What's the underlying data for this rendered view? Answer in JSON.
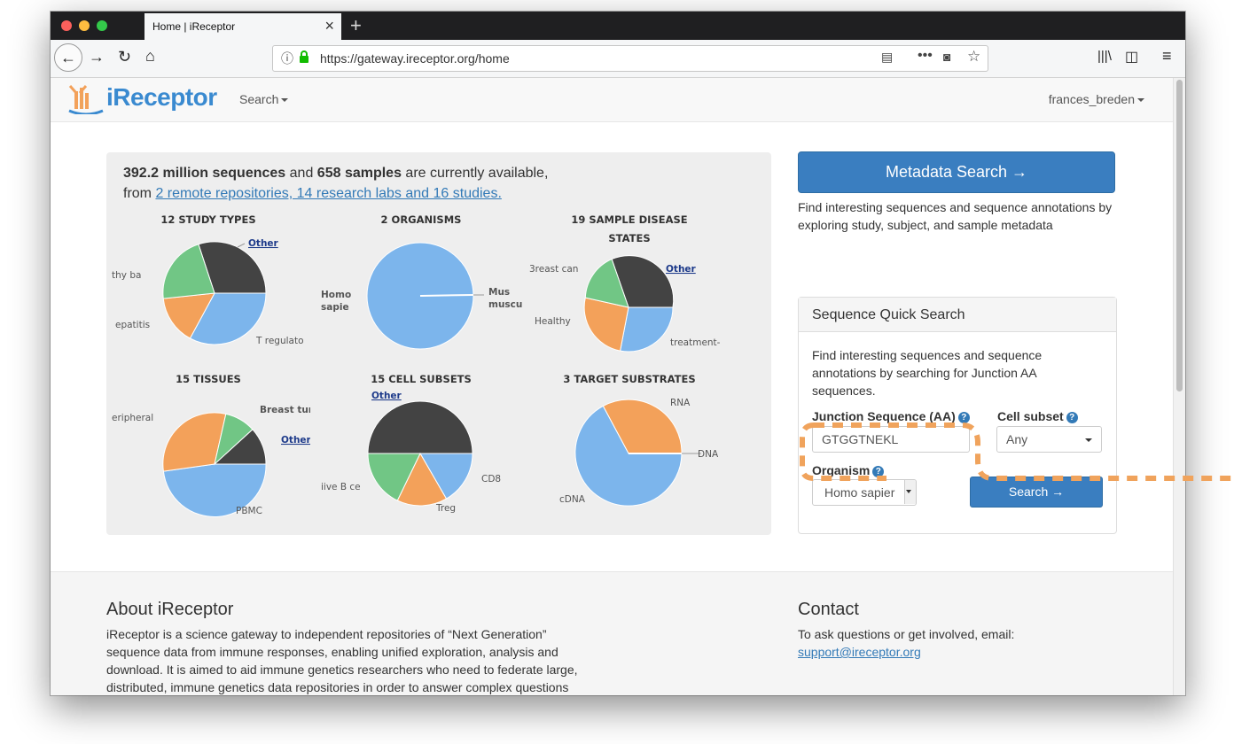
{
  "browser": {
    "tab_title": "Home | iReceptor",
    "url": "https://gateway.ireceptor.org/home"
  },
  "site": {
    "logo_text": "iReceptor",
    "nav_search": "Search",
    "nav_user": "frances_breden"
  },
  "summary": {
    "sequences": "392.2 million sequences",
    "and": " and ",
    "samples": "658 samples",
    "available": " are currently available,",
    "from": "from ",
    "link": "2 remote repositories, 14 research labs and 16 studies."
  },
  "charts": {
    "study_types": {
      "title": "12 STUDY TYPES",
      "other": "Other",
      "labels": [
        "thy ba",
        "epatitis",
        "T regulato"
      ]
    },
    "organisms": {
      "title": "2 ORGANISMS",
      "labels": [
        "Homo",
        "sapie",
        "Mus",
        "muscu"
      ]
    },
    "disease": {
      "title_line1": "19 SAMPLE DISEASE",
      "title_line2": "STATES",
      "other": "Other",
      "labels": [
        "3reast can",
        "Healthy",
        "treatment-"
      ]
    },
    "tissues": {
      "title": "15 TISSUES",
      "other": "Other",
      "labels": [
        "eripheral",
        "Breast tum",
        "PBMC"
      ]
    },
    "cell_subsets": {
      "title": "15 CELL SUBSETS",
      "other": "Other",
      "labels": [
        "iive B ce",
        "Treg",
        "CD8"
      ]
    },
    "substrates": {
      "title": "3 TARGET SUBSTRATES",
      "labels": [
        "RNA",
        "DNA",
        "cDNA"
      ]
    }
  },
  "chart_data": [
    {
      "type": "pie",
      "title": "12 STUDY TYPES",
      "categories": [
        "Other",
        "thy ba",
        "epatitis",
        "T regulato"
      ],
      "values": [
        35,
        12,
        15,
        38
      ]
    },
    {
      "type": "pie",
      "title": "2 ORGANISMS",
      "categories": [
        "Homo sapie",
        "Mus muscu"
      ],
      "values": [
        99.7,
        0.3
      ]
    },
    {
      "type": "pie",
      "title": "19 SAMPLE DISEASE STATES",
      "categories": [
        "Other",
        "3reast can",
        "Healthy",
        "treatment-"
      ],
      "values": [
        32,
        10,
        28,
        30
      ]
    },
    {
      "type": "pie",
      "title": "15 TISSUES",
      "categories": [
        "Other",
        "Breast tum",
        "eripheral",
        "PBMC"
      ],
      "values": [
        8,
        12,
        30,
        50
      ]
    },
    {
      "type": "pie",
      "title": "15 CELL SUBSETS",
      "categories": [
        "Other",
        "CD8",
        "Treg",
        "iive B ce"
      ],
      "values": [
        50,
        16,
        17,
        17
      ]
    },
    {
      "type": "pie",
      "title": "3 TARGET SUBSTRATES",
      "categories": [
        "RNA",
        "DNA",
        "cDNA"
      ],
      "values": [
        33,
        0.3,
        66.7
      ]
    }
  ],
  "colors": {
    "other": "#434343",
    "blue": "#7cb5ec",
    "orange": "#f3a15a",
    "green": "#71c685",
    "accent": "#337ab7",
    "highlight": "#f0a35c"
  },
  "metadata": {
    "button": "Metadata Search →",
    "desc": "Find interesting sequences and sequence annotations by exploring study, subject, and sample metadata"
  },
  "quick_search": {
    "title": "Sequence Quick Search",
    "desc": "Find interesting sequences and sequence annotations by searching for Junction AA sequences.",
    "junction_label": "Junction Sequence (AA)",
    "junction_value": "GTGGTNEKL",
    "cell_label": "Cell subset",
    "cell_value": "Any",
    "organism_label": "Organism",
    "organism_value": "Homo sapier",
    "button": "Search →",
    "help": "?"
  },
  "footer": {
    "about_title": "About iReceptor",
    "about_text": "iReceptor is a science gateway to independent repositories of “Next Generation” sequence data from immune responses, enabling unified exploration, analysis and download. It is aimed to aid immune genetics researchers who need to federate large, distributed, immune genetics data repositories in order to answer complex questions",
    "contact_title": "Contact",
    "contact_text": "To ask questions or get involved, email:",
    "contact_email": "support@ireceptor.org"
  }
}
